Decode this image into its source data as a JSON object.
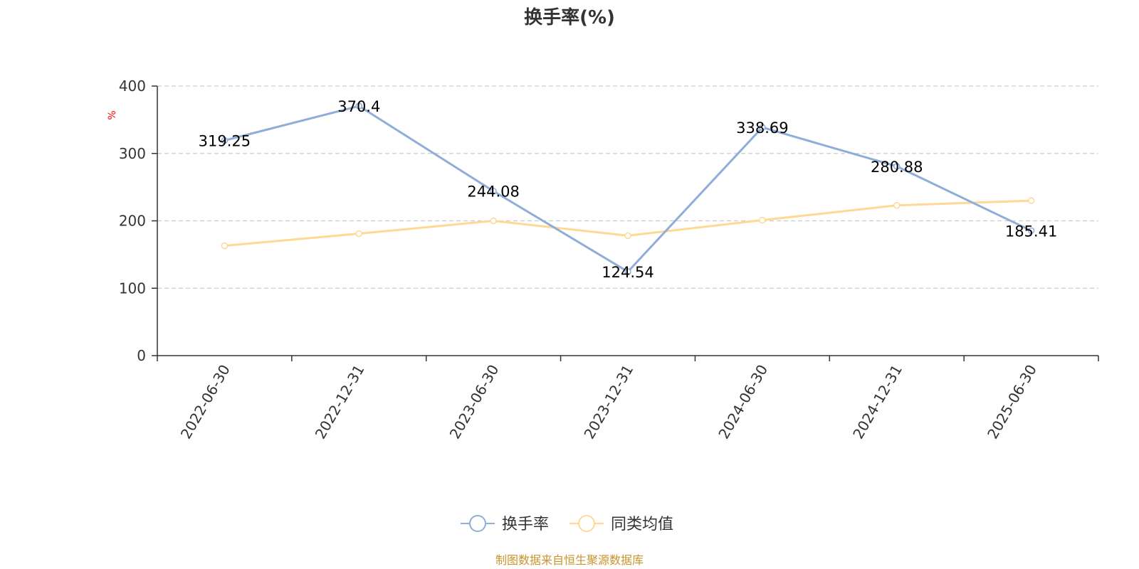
{
  "chart_data": {
    "type": "line",
    "title": "换手率(%)",
    "ylabel": "%",
    "categories": [
      "2022-06-30",
      "2022-12-31",
      "2023-06-30",
      "2023-12-31",
      "2024-06-30",
      "2024-12-31",
      "2025-06-30"
    ],
    "ylim": [
      0,
      400
    ],
    "yticks": [
      0,
      100,
      200,
      300,
      400
    ],
    "series": [
      {
        "name": "换手率",
        "color": "#8fadd9",
        "values": [
          319.25,
          370.4,
          244.08,
          124.54,
          338.69,
          280.88,
          185.41
        ],
        "data_labels": [
          "319.25",
          "370.4",
          "244.08",
          "124.54",
          "338.69",
          "280.88",
          "185.41"
        ]
      },
      {
        "name": "同类均值",
        "color": "#fdd993",
        "values": [
          163,
          181,
          200,
          178,
          201,
          223,
          230
        ]
      }
    ],
    "grid": true,
    "legend_position": "bottom-center"
  },
  "source": {
    "text": "制图数据来自恒生聚源数据库",
    "color": "#c8942c"
  }
}
